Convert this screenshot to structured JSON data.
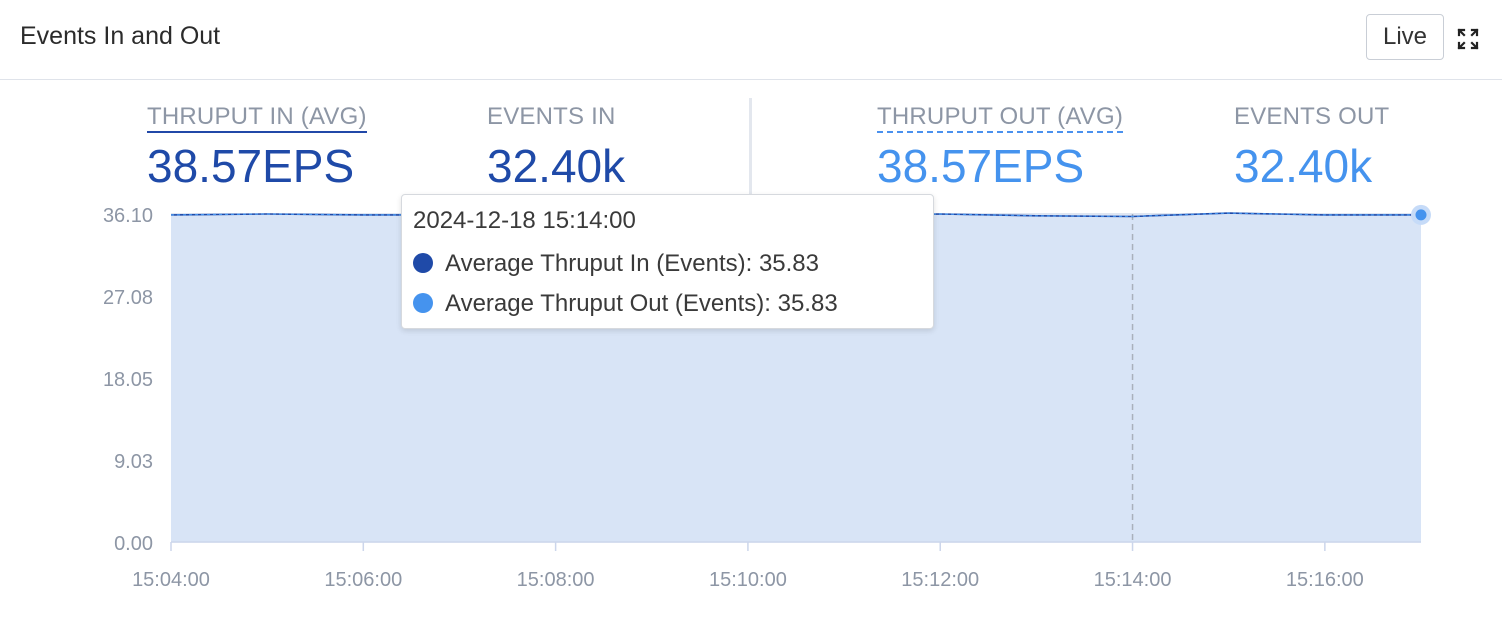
{
  "header": {
    "title": "Events In and Out",
    "live_label": "Live",
    "expand_icon": "expand-icon"
  },
  "stats": {
    "thruput_in": {
      "label": "THRUPUT IN (AVG)",
      "value": "38.57EPS"
    },
    "events_in": {
      "label": "EVENTS IN",
      "value": "32.40k"
    },
    "thruput_out": {
      "label": "THRUPUT OUT (AVG)",
      "value": "38.57EPS"
    },
    "events_out": {
      "label": "EVENTS OUT",
      "value": "32.40k"
    }
  },
  "colors": {
    "in_series": "#1f4aa8",
    "out_series": "#4593ee",
    "area_fill": "#d8e4f6",
    "grid": "#ccd6eb",
    "axis_text": "#8d96a5"
  },
  "tooltip": {
    "date": "2024-12-18 15:14:00",
    "rows": [
      {
        "text": "Average Thruput In (Events): 35.83",
        "color": "#1f4aa8"
      },
      {
        "text": "Average Thruput Out (Events): 35.83",
        "color": "#4593ee"
      }
    ]
  },
  "chart_data": {
    "type": "area",
    "x": [
      "15:04:00",
      "15:05:00",
      "15:06:00",
      "15:07:00",
      "15:08:00",
      "15:09:00",
      "15:10:00",
      "15:11:00",
      "15:12:00",
      "15:13:00",
      "15:14:00",
      "15:15:00",
      "15:16:00",
      "15:17:00"
    ],
    "x_ticks": [
      "15:04:00",
      "15:06:00",
      "15:08:00",
      "15:10:00",
      "15:12:00",
      "15:14:00",
      "15:16:00"
    ],
    "y_ticks": [
      "0.00",
      "9.03",
      "18.05",
      "27.08",
      "36.10"
    ],
    "ylim": [
      0,
      36.1
    ],
    "series": [
      {
        "name": "Average Thruput In (Events)",
        "values": [
          36.0,
          36.1,
          36.0,
          36.0,
          36.1,
          36.0,
          36.1,
          36.0,
          36.1,
          35.9,
          35.83,
          36.2,
          36.0,
          36.0
        ]
      },
      {
        "name": "Average Thruput Out (Events)",
        "values": [
          36.0,
          36.1,
          36.0,
          36.0,
          36.1,
          36.0,
          36.1,
          36.0,
          36.1,
          35.9,
          35.83,
          36.2,
          36.0,
          36.0
        ]
      }
    ],
    "hover_x": "15:14:00",
    "grid": true,
    "legend": "none"
  }
}
